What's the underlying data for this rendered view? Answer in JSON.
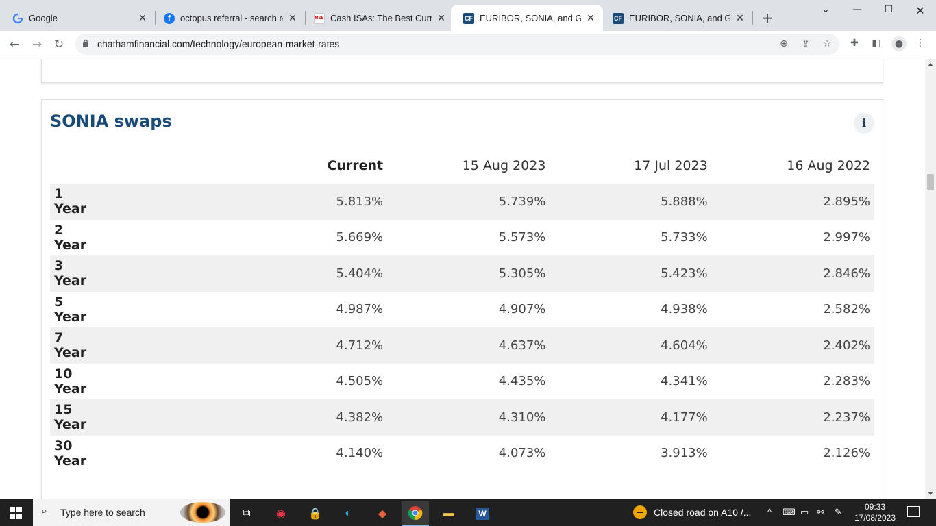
{
  "browser": {
    "tabs": [
      {
        "title": "Google",
        "favicon": "google-icon",
        "active": false
      },
      {
        "title": "octopus referral - search results",
        "favicon": "facebook-icon",
        "active": false
      },
      {
        "title": "Cash ISAs: The Best Currently",
        "favicon": "mse-icon",
        "active": false
      },
      {
        "title": "EURIBOR, SONIA, and Gilt Rates",
        "favicon": "cf-icon",
        "active": true
      },
      {
        "title": "EURIBOR, SONIA, and Gilt Rates",
        "favicon": "cf-icon",
        "active": false
      }
    ],
    "favicon_labels": {
      "mse": "MSE",
      "cf": "CF"
    },
    "url": "chathamfinancial.com/technology/european-market-rates"
  },
  "page": {
    "section_title": "SONIA swaps",
    "info_symbol": "i",
    "table": {
      "columns": [
        "",
        "Current",
        "15 Aug 2023",
        "17 Jul 2023",
        "16 Aug 2022"
      ],
      "rows": [
        {
          "label": "1 Year",
          "values": [
            "5.813%",
            "5.739%",
            "5.888%",
            "2.895%"
          ]
        },
        {
          "label": "2 Year",
          "values": [
            "5.669%",
            "5.573%",
            "5.733%",
            "2.997%"
          ]
        },
        {
          "label": "3 Year",
          "values": [
            "5.404%",
            "5.305%",
            "5.423%",
            "2.846%"
          ]
        },
        {
          "label": "5 Year",
          "values": [
            "4.987%",
            "4.907%",
            "4.938%",
            "2.582%"
          ]
        },
        {
          "label": "7 Year",
          "values": [
            "4.712%",
            "4.637%",
            "4.604%",
            "2.402%"
          ]
        },
        {
          "label": "10 Year",
          "values": [
            "4.505%",
            "4.435%",
            "4.341%",
            "2.283%"
          ]
        },
        {
          "label": "15 Year",
          "values": [
            "4.382%",
            "4.310%",
            "4.177%",
            "2.237%"
          ]
        },
        {
          "label": "30 Year",
          "values": [
            "4.140%",
            "4.073%",
            "3.913%",
            "2.126%"
          ]
        }
      ]
    }
  },
  "taskbar": {
    "search_placeholder": "Type here to search",
    "notification": "Closed road on A10 /...",
    "time": "09:33",
    "date": "17/08/2023"
  },
  "colors": {
    "title_blue": "#1a4a78",
    "row_shade": "#f0f0f0",
    "cf_brand": "#1a4a78",
    "facebook": "#1877f2"
  }
}
